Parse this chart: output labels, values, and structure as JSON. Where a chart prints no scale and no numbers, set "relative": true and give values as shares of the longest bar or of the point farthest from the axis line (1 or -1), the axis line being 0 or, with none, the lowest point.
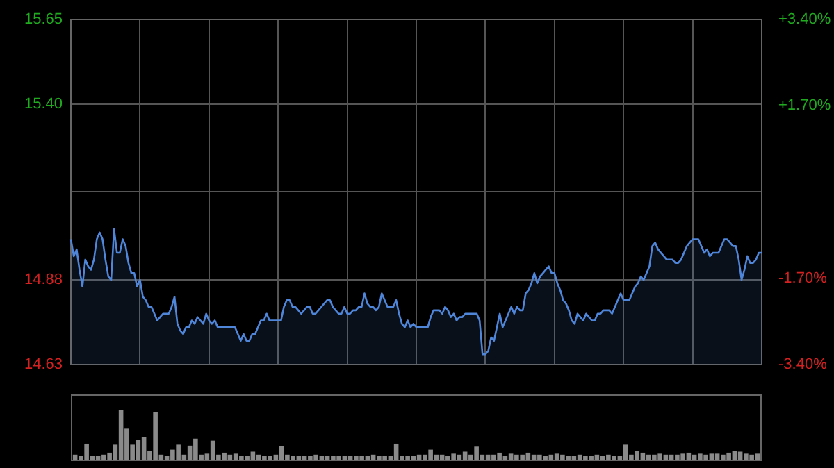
{
  "chart_data": [
    {
      "type": "area",
      "categories": [
        null,
        null,
        null,
        null,
        null,
        null,
        null,
        null,
        null,
        null,
        null,
        null,
        null,
        null,
        null,
        null,
        null,
        null,
        null,
        null,
        null,
        null,
        null,
        null,
        null,
        null,
        null,
        null,
        null,
        null,
        null,
        null,
        null,
        null,
        null,
        null,
        null,
        null,
        null,
        null,
        null,
        null,
        null,
        null,
        null,
        null,
        null,
        null,
        null,
        null,
        null,
        null,
        null,
        null,
        null,
        null,
        null,
        null,
        null,
        null,
        null,
        null,
        null,
        null,
        null,
        null,
        null,
        null,
        null,
        null,
        null,
        null,
        null,
        null,
        null,
        null,
        null,
        null,
        null,
        null,
        null,
        null,
        null,
        null,
        null,
        null,
        null,
        null,
        null,
        null,
        null,
        null,
        null,
        null,
        null,
        null,
        null,
        null,
        null,
        null,
        null,
        null,
        null,
        null,
        null,
        null,
        null,
        null,
        null,
        null,
        null,
        null,
        null,
        null,
        null,
        null,
        null,
        null,
        null,
        null,
        null,
        null,
        null,
        null,
        null,
        null,
        null,
        null,
        null,
        null,
        null,
        null,
        null,
        null,
        null,
        null,
        null,
        null,
        null,
        null,
        null,
        null,
        null,
        null,
        null,
        null,
        null,
        null,
        null,
        null,
        null,
        null,
        null,
        null,
        null,
        null,
        null,
        null,
        null,
        null,
        null,
        null,
        null,
        null,
        null,
        null,
        null,
        null,
        null,
        null,
        null,
        null,
        null,
        null,
        null,
        null,
        null,
        null,
        null,
        null,
        null,
        null,
        null,
        null,
        null,
        null,
        null,
        null,
        null,
        null,
        null,
        null,
        null,
        null,
        null,
        null,
        null,
        null,
        null,
        null,
        null,
        null,
        null,
        null,
        null,
        null,
        null,
        null,
        null,
        null,
        null,
        null,
        null,
        null,
        null,
        null,
        null,
        null,
        null,
        null,
        null,
        null,
        null,
        null,
        null,
        null,
        null,
        null,
        null,
        null,
        null,
        null,
        null,
        null,
        null,
        null,
        null,
        null,
        null,
        null,
        null
      ],
      "series": [
        {
          "color": "#4f86d9",
          "values": [
            15.0,
            14.95,
            14.97,
            14.91,
            14.86,
            14.94,
            14.92,
            14.91,
            14.94,
            15.0,
            15.02,
            15.0,
            14.94,
            14.89,
            14.88,
            15.03,
            14.96,
            14.96,
            15.0,
            14.98,
            14.93,
            14.9,
            14.9,
            14.86,
            14.88,
            14.83,
            14.82,
            14.8,
            14.8,
            14.78,
            14.76,
            14.77,
            14.78,
            14.78,
            14.78,
            14.8,
            14.83,
            14.75,
            14.73,
            14.72,
            14.74,
            14.74,
            14.76,
            14.75,
            14.77,
            14.76,
            14.75,
            14.78,
            14.76,
            14.75,
            14.76,
            14.74,
            14.74,
            14.74,
            14.74,
            14.74,
            14.74,
            14.74,
            14.72,
            14.7,
            14.72,
            14.7,
            14.7,
            14.72,
            14.72,
            14.74,
            14.76,
            14.76,
            14.78,
            14.76,
            14.76,
            14.76,
            14.76,
            14.76,
            14.8,
            14.82,
            14.82,
            14.8,
            14.8,
            14.79,
            14.78,
            14.79,
            14.8,
            14.8,
            14.78,
            14.78,
            14.79,
            14.8,
            14.81,
            14.82,
            14.82,
            14.8,
            14.79,
            14.78,
            14.78,
            14.8,
            14.78,
            14.78,
            14.79,
            14.79,
            14.8,
            14.8,
            14.84,
            14.81,
            14.8,
            14.8,
            14.79,
            14.8,
            14.84,
            14.82,
            14.8,
            14.8,
            14.8,
            14.82,
            14.78,
            14.75,
            14.74,
            14.76,
            14.74,
            14.75,
            14.74,
            14.74,
            14.74,
            14.74,
            14.74,
            14.77,
            14.79,
            14.79,
            14.79,
            14.78,
            14.8,
            14.79,
            14.77,
            14.78,
            14.76,
            14.77,
            14.77,
            14.78,
            14.78,
            14.78,
            14.78,
            14.78,
            14.76,
            14.66,
            14.66,
            14.67,
            14.71,
            14.7,
            14.74,
            14.78,
            14.74,
            14.76,
            14.78,
            14.8,
            14.78,
            14.8,
            14.79,
            14.79,
            14.84,
            14.85,
            14.87,
            14.9,
            14.87,
            14.89,
            14.9,
            14.91,
            14.92,
            14.9,
            14.9,
            14.87,
            14.85,
            14.82,
            14.81,
            14.79,
            14.76,
            14.75,
            14.78,
            14.77,
            14.76,
            14.78,
            14.77,
            14.76,
            14.76,
            14.78,
            14.78,
            14.79,
            14.79,
            14.79,
            14.78,
            14.8,
            14.82,
            14.84,
            14.82,
            14.82,
            14.82,
            14.84,
            14.86,
            14.87,
            14.89,
            14.88,
            14.9,
            14.92,
            14.98,
            14.99,
            14.97,
            14.96,
            14.95,
            14.94,
            14.94,
            14.94,
            14.93,
            14.93,
            14.94,
            14.96,
            14.98,
            14.99,
            15.0,
            15.0,
            15.0,
            14.98,
            14.96,
            14.97,
            14.95,
            14.96,
            14.96,
            14.96,
            14.98,
            15.0,
            15.0,
            14.99,
            14.98,
            14.98,
            14.94,
            14.88,
            14.91,
            14.95,
            14.93,
            14.93,
            14.94,
            14.96,
            14.96
          ]
        }
      ],
      "ylim": [
        14.63,
        15.65
      ],
      "yticks": [
        14.63,
        14.88,
        {
          "value": 15.14,
          "label": null
        },
        {
          "value": 15.4,
          "label": "15.40"
        },
        15.65
      ],
      "y2lim": [
        -3.4,
        3.4
      ],
      "y2ticks": [
        {
          "value": -3.4,
          "label": "-3.40%"
        },
        {
          "value": -1.7,
          "label": "-1.70%"
        },
        {
          "value": 0,
          "label": null
        },
        {
          "value": 1.7,
          "label": "+1.70%"
        },
        {
          "value": 3.4,
          "label": "+3.40%"
        }
      ],
      "tick_labels": "y",
      "grid": true,
      "legend": false
    },
    {
      "type": "bar",
      "relative": true,
      "color": "#8a8a8a",
      "categories": [
        null,
        null,
        null,
        null,
        null,
        null,
        null,
        null,
        null,
        null,
        null,
        null,
        null,
        null,
        null,
        null,
        null,
        null,
        null,
        null,
        null,
        null,
        null,
        null,
        null,
        null,
        null,
        null,
        null,
        null,
        null,
        null,
        null,
        null,
        null,
        null,
        null,
        null,
        null,
        null,
        null,
        null,
        null,
        null,
        null,
        null,
        null,
        null,
        null,
        null,
        null,
        null,
        null,
        null,
        null,
        null,
        null,
        null,
        null,
        null,
        null,
        null,
        null,
        null,
        null,
        null,
        null,
        null,
        null,
        null,
        null,
        null,
        null,
        null,
        null,
        null,
        null,
        null,
        null,
        null,
        null,
        null,
        null,
        null,
        null,
        null,
        null,
        null,
        null,
        null,
        null,
        null,
        null,
        null,
        null,
        null,
        null,
        null,
        null,
        null,
        null,
        null,
        null,
        null,
        null,
        null,
        null,
        null,
        null,
        null,
        null,
        null,
        null,
        null,
        null,
        null,
        null,
        null,
        null,
        null
      ],
      "values": [
        0.1,
        0.08,
        0.32,
        0.08,
        0.08,
        0.1,
        0.14,
        0.3,
        1,
        0.62,
        0.3,
        0.4,
        0.45,
        0.18,
        0.95,
        0.1,
        0.08,
        0.2,
        0.3,
        0.1,
        0.28,
        0.42,
        0.1,
        0.12,
        0.38,
        0.1,
        0.14,
        0.1,
        0.12,
        0.08,
        0.08,
        0.16,
        0.1,
        0.08,
        0.08,
        0.1,
        0.27,
        0.1,
        0.08,
        0.08,
        0.08,
        0.08,
        0.1,
        0.08,
        0.08,
        0.08,
        0.08,
        0.08,
        0.08,
        0.08,
        0.08,
        0.08,
        0.1,
        0.08,
        0.08,
        0.08,
        0.32,
        0.08,
        0.08,
        0.08,
        0.1,
        0.1,
        0.2,
        0.1,
        0.1,
        0.08,
        0.12,
        0.1,
        0.16,
        0.1,
        0.26,
        0.1,
        0.1,
        0.1,
        0.14,
        0.08,
        0.12,
        0.1,
        0.1,
        0.14,
        0.1,
        0.1,
        0.08,
        0.1,
        0.12,
        0.1,
        0.08,
        0.08,
        0.1,
        0.08,
        0.08,
        0.1,
        0.08,
        0.1,
        0.08,
        0.08,
        0.3,
        0.1,
        0.18,
        0.14,
        0.1,
        0.1,
        0.12,
        0.1,
        0.1,
        0.1,
        0.12,
        0.14,
        0.1,
        0.12,
        0.1,
        0.12,
        0.12,
        0.1,
        0.14,
        0.18,
        0.16,
        0.12,
        0.1,
        0.12
      ]
    }
  ]
}
